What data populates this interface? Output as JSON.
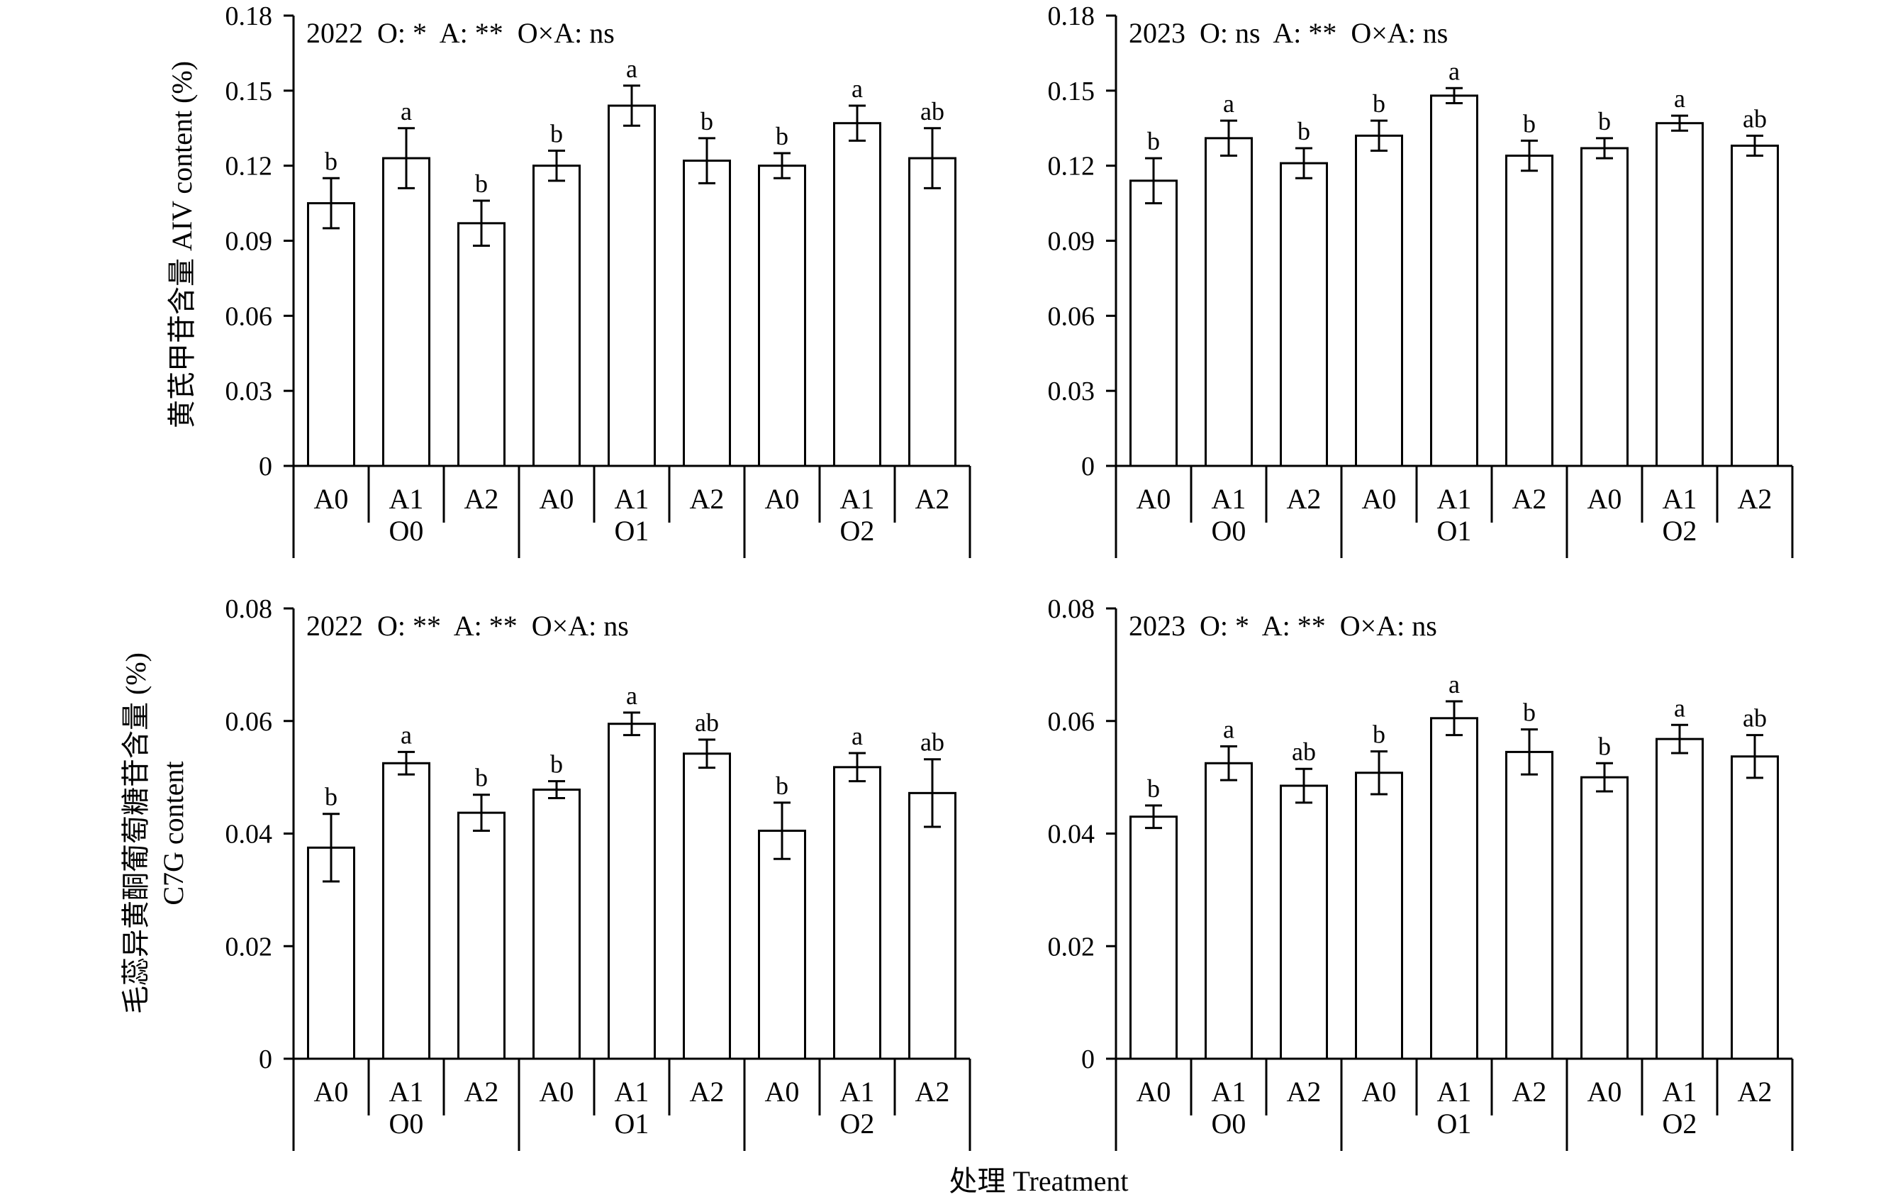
{
  "figure": {
    "xlabel": "处理 Treatment",
    "ylabel_top": "黄芪甲苷含量 AIV content (%)",
    "ylabel_bottom_line1": "毛蕊异黄酮葡萄糖苷含量 (%)",
    "ylabel_bottom_line2": "C7G content"
  },
  "chart_data": [
    {
      "type": "bar",
      "annotation": "2022  O: *  A: **  O×A: ns",
      "groups": [
        "O0",
        "O1",
        "O2"
      ],
      "categories": [
        "A0",
        "A1",
        "A2",
        "A0",
        "A1",
        "A2",
        "A0",
        "A1",
        "A2"
      ],
      "values": [
        0.105,
        0.123,
        0.097,
        0.12,
        0.144,
        0.122,
        0.12,
        0.137,
        0.123
      ],
      "errors": [
        0.01,
        0.012,
        0.009,
        0.006,
        0.008,
        0.009,
        0.005,
        0.007,
        0.012
      ],
      "letters": [
        "b",
        "a",
        "b",
        "b",
        "a",
        "b",
        "b",
        "a",
        "ab"
      ],
      "ylim": [
        0,
        0.18
      ],
      "yticks": [
        0,
        0.03,
        0.06,
        0.09,
        0.12,
        0.15,
        0.18
      ],
      "ytick_labels": [
        "0",
        "0.03",
        "0.06",
        "0.09",
        "0.12",
        "0.15",
        "0.18"
      ]
    },
    {
      "type": "bar",
      "annotation": "2023  O: ns  A: **  O×A: ns",
      "groups": [
        "O0",
        "O1",
        "O2"
      ],
      "categories": [
        "A0",
        "A1",
        "A2",
        "A0",
        "A1",
        "A2",
        "A0",
        "A1",
        "A2"
      ],
      "values": [
        0.114,
        0.131,
        0.121,
        0.132,
        0.148,
        0.124,
        0.127,
        0.137,
        0.128
      ],
      "errors": [
        0.009,
        0.007,
        0.006,
        0.006,
        0.003,
        0.006,
        0.004,
        0.003,
        0.004
      ],
      "letters": [
        "b",
        "a",
        "b",
        "b",
        "a",
        "b",
        "b",
        "a",
        "ab"
      ],
      "ylim": [
        0,
        0.18
      ],
      "yticks": [
        0,
        0.03,
        0.06,
        0.09,
        0.12,
        0.15,
        0.18
      ],
      "ytick_labels": [
        "0",
        "0.03",
        "0.06",
        "0.09",
        "0.12",
        "0.15",
        "0.18"
      ]
    },
    {
      "type": "bar",
      "annotation": "2022  O: **  A: **  O×A: ns",
      "groups": [
        "O0",
        "O1",
        "O2"
      ],
      "categories": [
        "A0",
        "A1",
        "A2",
        "A0",
        "A1",
        "A2",
        "A0",
        "A1",
        "A2"
      ],
      "values": [
        0.0375,
        0.0525,
        0.0437,
        0.0478,
        0.0595,
        0.0542,
        0.0405,
        0.0518,
        0.0472
      ],
      "errors": [
        0.006,
        0.002,
        0.0032,
        0.0015,
        0.002,
        0.0025,
        0.005,
        0.0025,
        0.006
      ],
      "letters": [
        "b",
        "a",
        "b",
        "b",
        "a",
        "ab",
        "b",
        "a",
        "ab"
      ],
      "ylim": [
        0,
        0.08
      ],
      "yticks": [
        0,
        0.02,
        0.04,
        0.06,
        0.08
      ],
      "ytick_labels": [
        "0",
        "0.02",
        "0.04",
        "0.06",
        "0.08"
      ]
    },
    {
      "type": "bar",
      "annotation": "2023  O: *  A: **  O×A: ns",
      "groups": [
        "O0",
        "O1",
        "O2"
      ],
      "categories": [
        "A0",
        "A1",
        "A2",
        "A0",
        "A1",
        "A2",
        "A0",
        "A1",
        "A2"
      ],
      "values": [
        0.043,
        0.0525,
        0.0485,
        0.0508,
        0.0605,
        0.0545,
        0.05,
        0.0568,
        0.0537
      ],
      "errors": [
        0.002,
        0.003,
        0.003,
        0.0038,
        0.003,
        0.004,
        0.0025,
        0.0025,
        0.0038
      ],
      "letters": [
        "b",
        "a",
        "ab",
        "b",
        "a",
        "b",
        "b",
        "a",
        "ab"
      ],
      "ylim": [
        0,
        0.08
      ],
      "yticks": [
        0,
        0.02,
        0.04,
        0.06,
        0.08
      ],
      "ytick_labels": [
        "0",
        "0.02",
        "0.04",
        "0.06",
        "0.08"
      ]
    }
  ]
}
